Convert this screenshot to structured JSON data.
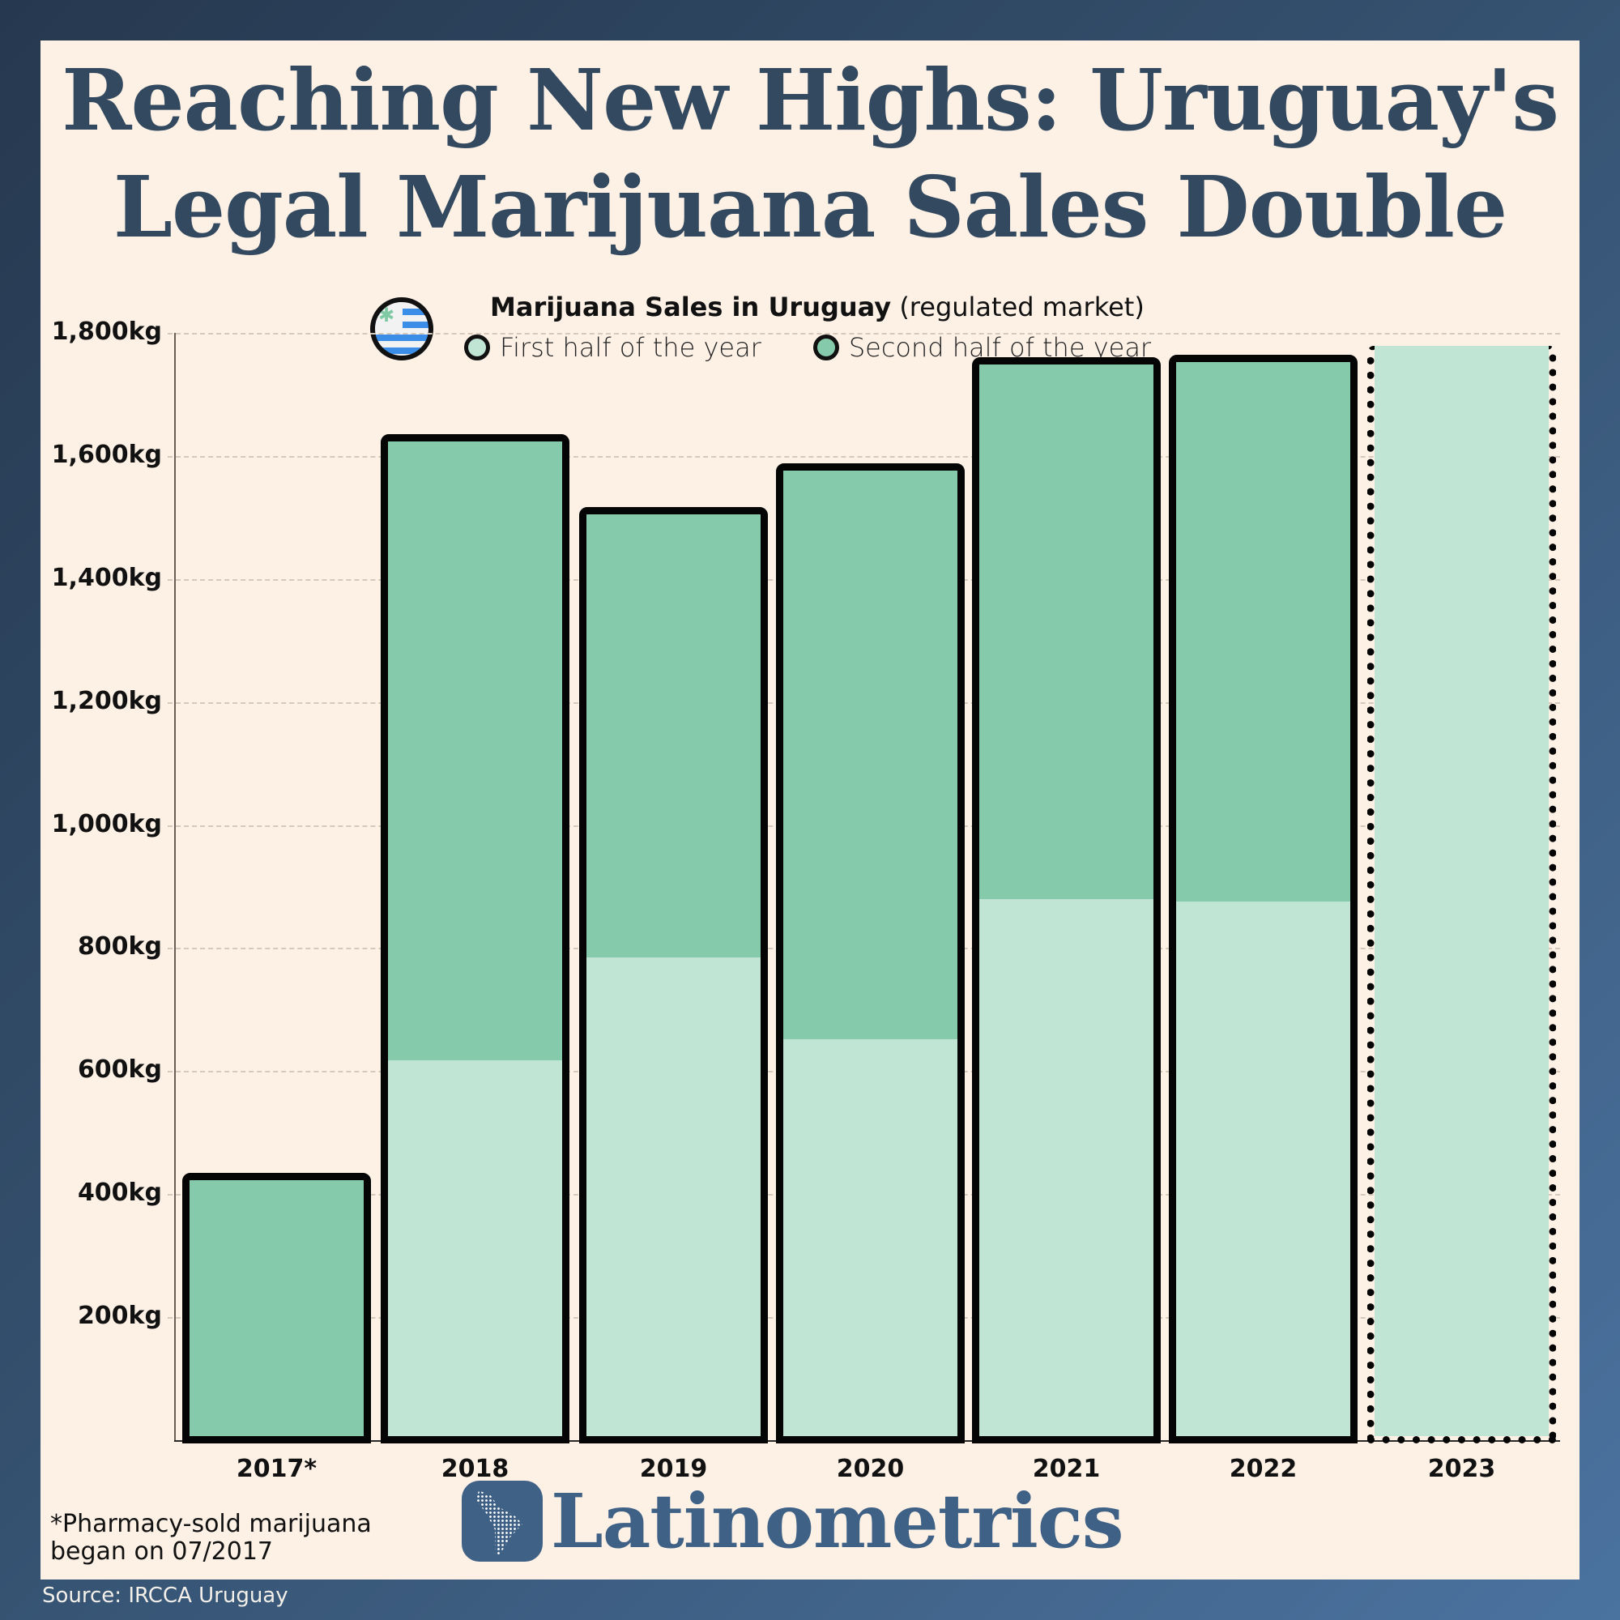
{
  "title": {
    "line1": "Reaching New Highs: Uruguay's",
    "line2": "Legal Marijuana Sales Double"
  },
  "legend": {
    "icon": "uruguay-flag-cannabis-icon",
    "heading_bold": "Marijuana Sales in Uruguay",
    "heading_sub": "(regulated market)",
    "items": [
      {
        "label": "First half of the year",
        "color": "#c1e5d5"
      },
      {
        "label": "Second half of the year",
        "color": "#85cbab"
      }
    ]
  },
  "footnote": {
    "line1": "*Pharmacy-sold marijuana",
    "line2": "began on 07/2017"
  },
  "brand": {
    "name": "Latinometrics",
    "icon": "latin-america-map-icon",
    "color": "#3f6186"
  },
  "source": "Source: IRCCA Uruguay",
  "colors": {
    "first_half": "#c1e5d5",
    "second_half": "#85cbab",
    "title": "#33495f",
    "panel_bg": "#fdf1e6",
    "outline": "#050505"
  },
  "chart_data": {
    "type": "bar",
    "stacked": true,
    "title": "Marijuana Sales in Uruguay (regulated market)",
    "xlabel": "",
    "ylabel": "kg",
    "ylim": [
      0,
      1800
    ],
    "yticks": [
      200,
      400,
      600,
      800,
      1000,
      1200,
      1400,
      1600,
      1800
    ],
    "ytick_labels": [
      "200kg",
      "400kg",
      "600kg",
      "800kg",
      "1,000kg",
      "1,200kg",
      "1,400kg",
      "1,600kg",
      "1,800kg"
    ],
    "grid": true,
    "legend_position": "top",
    "categories": [
      "2017*",
      "2018",
      "2019",
      "2020",
      "2021",
      "2022",
      "2023"
    ],
    "series": [
      {
        "name": "First half of the year",
        "values": [
          0,
          629,
          797,
          663,
          892,
          887,
          1779
        ]
      },
      {
        "name": "Second half of the year",
        "values": [
          435,
          1006,
          720,
          925,
          868,
          877,
          0
        ]
      }
    ],
    "totals": [
      435,
      1635,
      1517,
      1588,
      1760,
      1764,
      1779
    ],
    "annotations": [
      "2017*: Pharmacy-sold marijuana began on 07/2017",
      "2023 bar drawn with dotted outline (first half only)"
    ]
  }
}
